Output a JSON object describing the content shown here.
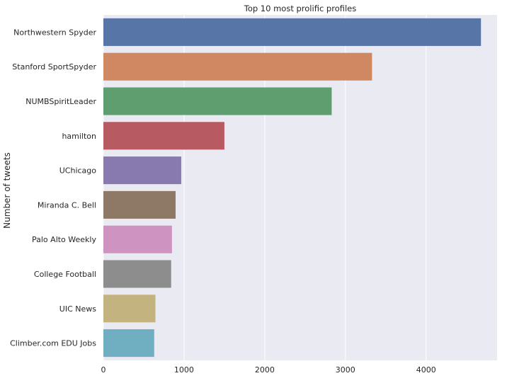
{
  "chart_data": {
    "type": "bar",
    "orientation": "horizontal",
    "title": "Top 10 most prolific profiles",
    "xlabel": "",
    "ylabel": "Number of tweets",
    "xlim": [
      0,
      4880
    ],
    "x_ticks": [
      0,
      1000,
      2000,
      3000,
      4000
    ],
    "grid": true,
    "legend": "none",
    "categories": [
      "Northwestern Spyder",
      "Stanford SportSpyder",
      "NUMBSpiritLeader",
      "hamilton",
      "UChicago",
      "Miranda C. Bell",
      "Palo Alto Weekly",
      "College Football",
      "UIC News",
      "Climber.com EDU Jobs"
    ],
    "values": [
      4680,
      3330,
      2830,
      1500,
      965,
      895,
      850,
      840,
      645,
      630
    ],
    "colors": [
      "#5875a8",
      "#cf8862",
      "#5f9f6f",
      "#b75a62",
      "#8879ae",
      "#8e7866",
      "#cf93c1",
      "#8d8d8d",
      "#c3b37f",
      "#70aec2"
    ],
    "background_color": "#eaeaf2",
    "grid_color": "#ffffff"
  }
}
